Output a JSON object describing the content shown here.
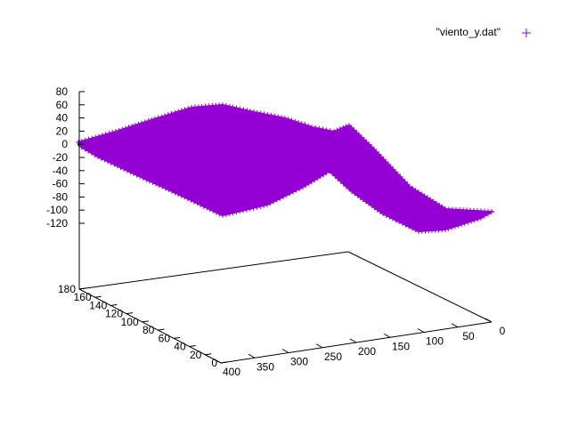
{
  "chart_data": {
    "type": "surface3d",
    "title": "",
    "xlabel": "",
    "ylabel": "",
    "zlabel": "",
    "xlim": [
      0,
      400
    ],
    "ylim": [
      0,
      180
    ],
    "zlim": [
      -120,
      80
    ],
    "x_ticks": [
      "0",
      "50",
      "100",
      "150",
      "200",
      "250",
      "300",
      "350",
      "400"
    ],
    "y_ticks": [
      "0",
      "20",
      "40",
      "60",
      "80",
      "100",
      "120",
      "140",
      "160",
      "180"
    ],
    "z_ticks": [
      "80",
      "60",
      "40",
      "20",
      "0",
      "-20",
      "-40",
      "-60",
      "-80",
      "-100",
      "-120"
    ],
    "legend_position": "top-right",
    "series": [
      {
        "name": "\"viento_y.dat\"",
        "marker": "+",
        "color": "#9400d3"
      }
    ],
    "surface_edges": {
      "front_x0_z": [
        [
          0,
          45
        ],
        [
          15,
          35
        ],
        [
          30,
          20
        ],
        [
          50,
          0
        ],
        [
          70,
          -15
        ],
        [
          90,
          -20
        ],
        [
          110,
          -15
        ],
        [
          130,
          -5
        ],
        [
          160,
          10
        ],
        [
          190,
          20
        ],
        [
          200,
          22
        ],
        [
          210,
          18
        ]
      ],
      "back_x0_z": [
        [
          0,
          -15
        ],
        [
          20,
          -10
        ],
        [
          45,
          0
        ],
        [
          80,
          20
        ],
        [
          120,
          40
        ],
        [
          150,
          55
        ],
        [
          170,
          58
        ],
        [
          180,
          58
        ]
      ]
    }
  }
}
